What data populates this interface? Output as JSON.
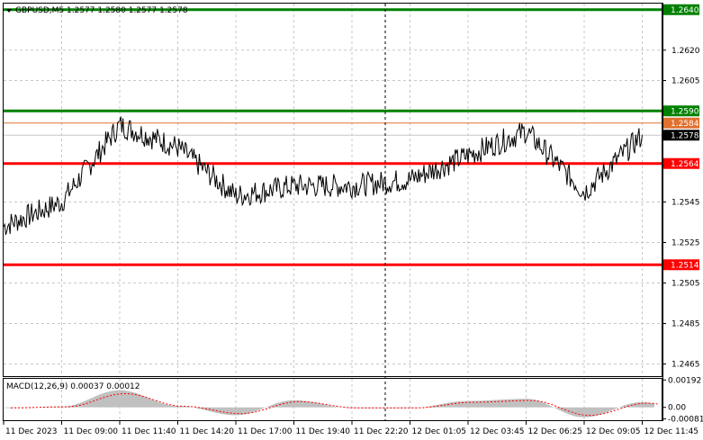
{
  "title": "GBPUSD,M5  1.2577 1.2580 1.2577 1.2578",
  "colors": {
    "background": "#ffffff",
    "grid": "#c8c8c8",
    "price_line": "#000000",
    "macd_hist": "#c0c0c0",
    "macd_signal": "#ff0000",
    "level_green": "#008000",
    "level_red": "#ff0000",
    "level_orange": "#e07030",
    "current_price": "#000000"
  },
  "price_axis": {
    "ticks": [
      "1.2620",
      "1.2605",
      "1.2545",
      "1.2525",
      "1.2505",
      "1.2485",
      "1.2465"
    ]
  },
  "levels": [
    {
      "label": "1.2640",
      "value": 1.264,
      "color": "#008000"
    },
    {
      "label": "1.2590",
      "value": 1.259,
      "color": "#008000"
    },
    {
      "label": "1.2584",
      "value": 1.2584,
      "color": "#e07030"
    },
    {
      "label": "1.2564",
      "value": 1.2564,
      "color": "#ff0000"
    },
    {
      "label": "1.2514",
      "value": 1.2514,
      "color": "#ff0000"
    }
  ],
  "current_price": {
    "label": "1.2578",
    "value": 1.2578
  },
  "macd": {
    "label": "MACD(12,26,9) 0.00037 0.00012",
    "ticks": [
      "0.00192",
      "0.00",
      "-0.00081"
    ]
  },
  "time_axis": {
    "labels": [
      "11 Dec 2023",
      "11 Dec 09:00",
      "11 Dec 11:40",
      "11 Dec 14:20",
      "11 Dec 17:00",
      "11 Dec 19:40",
      "11 Dec 22:20",
      "12 Dec 01:05",
      "12 Dec 03:45",
      "12 Dec 06:25",
      "12 Dec 09:05",
      "12 Dec 11:45"
    ]
  },
  "chart_data": {
    "type": "line",
    "symbol": "GBPUSD",
    "timeframe": "M5",
    "ohlc": {
      "open": 1.2577,
      "high": 1.258,
      "low": 1.2577,
      "close": 1.2578
    },
    "x": [
      "11 Dec 2023",
      "11 Dec 09:00",
      "11 Dec 11:40",
      "11 Dec 14:20",
      "11 Dec 17:00",
      "11 Dec 19:40",
      "11 Dec 22:20",
      "12 Dec 01:05",
      "12 Dec 03:45",
      "12 Dec 06:25",
      "12 Dec 09:05",
      "12 Dec 11:45"
    ],
    "series": [
      {
        "values": [
          1.2533,
          1.2545,
          1.2583,
          1.2572,
          1.2548,
          1.2553,
          1.2553,
          1.2556,
          1.2568,
          1.258,
          1.255,
          1.2578
        ]
      }
    ],
    "macd_series": [
      {
        "name": "MACD(12,26,9)",
        "values": [
          -5e-05,
          5e-05,
          0.0012,
          0.0001,
          -0.00055,
          0.0005,
          -5e-05,
          -5e-05,
          0.00045,
          0.0006,
          -0.0007,
          0.00037
        ]
      }
    ],
    "ylim": [
      1.2459,
      1.2643
    ],
    "macd_ylim": [
      -0.0009,
      0.002
    ]
  }
}
